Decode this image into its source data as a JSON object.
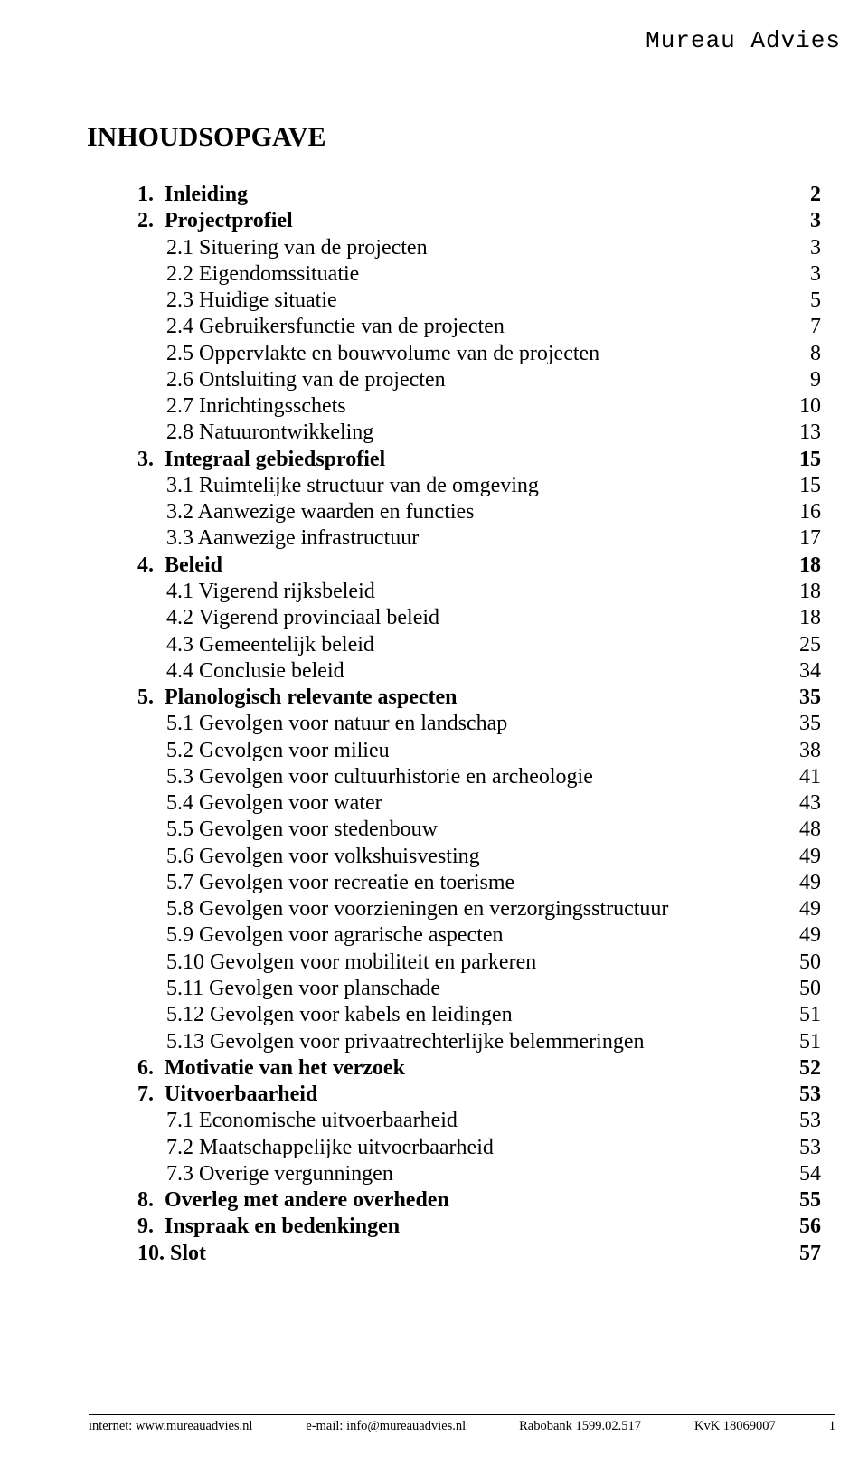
{
  "font": {
    "body_family": "Times New Roman",
    "header_family": "Courier New",
    "title_size_pt": 22,
    "body_size_pt": 18,
    "footer_size_pt": 11
  },
  "colors": {
    "background": "#ffffff",
    "text": "#000000",
    "rule": "#000000"
  },
  "header_right": "Mureau Advies",
  "title": "INHOUDSOPGAVE",
  "toc": [
    {
      "indent": 0,
      "bold": true,
      "label": "1.  Inleiding",
      "page": "2"
    },
    {
      "indent": 0,
      "bold": true,
      "label": "2.  Projectprofiel",
      "page": "3"
    },
    {
      "indent": 1,
      "bold": false,
      "label": "2.1 Situering van de projecten",
      "page": "3"
    },
    {
      "indent": 1,
      "bold": false,
      "label": "2.2 Eigendomssituatie",
      "page": "3"
    },
    {
      "indent": 1,
      "bold": false,
      "label": "2.3 Huidige situatie",
      "page": "5"
    },
    {
      "indent": 1,
      "bold": false,
      "label": "2.4 Gebruikersfunctie van de projecten",
      "page": "7"
    },
    {
      "indent": 1,
      "bold": false,
      "label": "2.5 Oppervlakte en bouwvolume van de projecten",
      "page": "8"
    },
    {
      "indent": 1,
      "bold": false,
      "label": "2.6 Ontsluiting van de projecten",
      "page": "9"
    },
    {
      "indent": 1,
      "bold": false,
      "label": "2.7 Inrichtingsschets",
      "page": "10"
    },
    {
      "indent": 1,
      "bold": false,
      "label": "2.8 Natuurontwikkeling",
      "page": "13"
    },
    {
      "indent": 0,
      "bold": true,
      "label": "3.  Integraal gebiedsprofiel",
      "page": "15"
    },
    {
      "indent": 1,
      "bold": false,
      "label": "3.1 Ruimtelijke structuur van de omgeving",
      "page": "15"
    },
    {
      "indent": 1,
      "bold": false,
      "label": "3.2 Aanwezige waarden en functies",
      "page": "16"
    },
    {
      "indent": 1,
      "bold": false,
      "label": "3.3 Aanwezige infrastructuur",
      "page": "17"
    },
    {
      "indent": 0,
      "bold": true,
      "label": "4.  Beleid",
      "page": "18"
    },
    {
      "indent": 1,
      "bold": false,
      "label": "4.1 Vigerend rijksbeleid",
      "page": "18"
    },
    {
      "indent": 1,
      "bold": false,
      "label": "4.2 Vigerend provinciaal beleid",
      "page": "18"
    },
    {
      "indent": 1,
      "bold": false,
      "label": "4.3 Gemeentelijk beleid",
      "page": "25"
    },
    {
      "indent": 1,
      "bold": false,
      "label": "4.4 Conclusie beleid",
      "page": "34"
    },
    {
      "indent": 0,
      "bold": true,
      "label": "5.  Planologisch relevante aspecten",
      "page": "35"
    },
    {
      "indent": 1,
      "bold": false,
      "label": "5.1 Gevolgen voor natuur en landschap",
      "page": "35"
    },
    {
      "indent": 1,
      "bold": false,
      "label": "5.2 Gevolgen voor milieu",
      "page": "38"
    },
    {
      "indent": 1,
      "bold": false,
      "label": "5.3 Gevolgen voor cultuurhistorie en archeologie",
      "page": "41"
    },
    {
      "indent": 1,
      "bold": false,
      "label": "5.4 Gevolgen voor water",
      "page": "43"
    },
    {
      "indent": 1,
      "bold": false,
      "label": "5.5 Gevolgen voor stedenbouw",
      "page": "48"
    },
    {
      "indent": 1,
      "bold": false,
      "label": "5.6 Gevolgen voor volkshuisvesting",
      "page": "49"
    },
    {
      "indent": 1,
      "bold": false,
      "label": "5.7 Gevolgen voor recreatie en toerisme",
      "page": "49"
    },
    {
      "indent": 1,
      "bold": false,
      "label": "5.8 Gevolgen voor voorzieningen en verzorgingsstructuur",
      "page": "49"
    },
    {
      "indent": 1,
      "bold": false,
      "label": "5.9 Gevolgen voor agrarische aspecten",
      "page": "49"
    },
    {
      "indent": 1,
      "bold": false,
      "label": "5.10 Gevolgen voor mobiliteit en parkeren",
      "page": "50"
    },
    {
      "indent": 1,
      "bold": false,
      "label": "5.11 Gevolgen voor planschade",
      "page": "50"
    },
    {
      "indent": 1,
      "bold": false,
      "label": "5.12 Gevolgen voor kabels en leidingen",
      "page": "51"
    },
    {
      "indent": 1,
      "bold": false,
      "label": "5.13 Gevolgen voor privaatrechterlijke belemmeringen",
      "page": "51"
    },
    {
      "indent": 0,
      "bold": true,
      "label": "6.  Motivatie van het verzoek",
      "page": "52"
    },
    {
      "indent": 0,
      "bold": true,
      "label": "7.  Uitvoerbaarheid",
      "page": "53"
    },
    {
      "indent": 1,
      "bold": false,
      "label": "7.1 Economische uitvoerbaarheid",
      "page": "53"
    },
    {
      "indent": 1,
      "bold": false,
      "label": "7.2 Maatschappelijke uitvoerbaarheid",
      "page": "53"
    },
    {
      "indent": 1,
      "bold": false,
      "label": "7.3 Overige vergunningen",
      "page": "54"
    },
    {
      "indent": 0,
      "bold": true,
      "label": "8.  Overleg met andere overheden",
      "page": "55"
    },
    {
      "indent": 0,
      "bold": true,
      "label": "9.  Inspraak en bedenkingen",
      "page": "56"
    },
    {
      "indent": 0,
      "bold": true,
      "label": "10. Slot",
      "page": "57"
    }
  ],
  "footer": {
    "internet_label": "internet: www.mureauadvies.nl",
    "email_label": "e-mail: info@mureauadvies.nl",
    "bank_label": "Rabobank 1599.02.517",
    "kvk_label": "KvK 18069007",
    "page_no": "1"
  }
}
